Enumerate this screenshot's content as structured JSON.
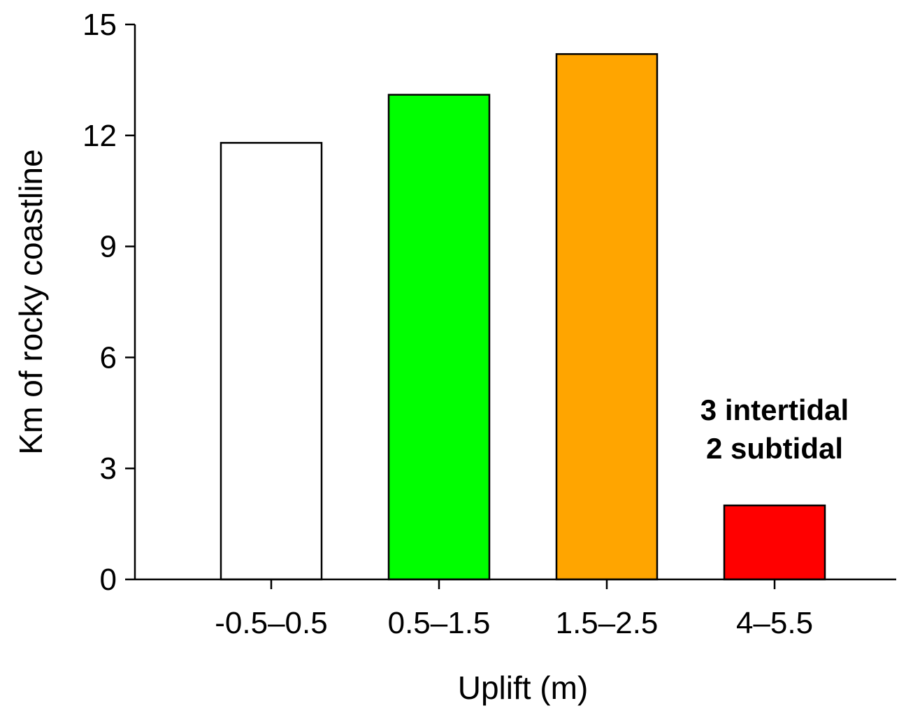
{
  "chart_data": {
    "type": "bar",
    "categories": [
      "-0.5–0.5",
      "0.5–1.5",
      "1.5–2.5",
      "4–5.5"
    ],
    "values": [
      11.8,
      13.1,
      14.2,
      2.0
    ],
    "colors": [
      "#ffffff",
      "#00ff00",
      "#ffa500",
      "#ff0000"
    ],
    "xlabel": "Uplift (m)",
    "ylabel": "Km of rocky coastline",
    "ylim": [
      0,
      15
    ],
    "yticks": [
      0,
      3,
      6,
      9,
      12,
      15
    ],
    "grid": false,
    "annotations": [
      {
        "category": "4–5.5",
        "lines": [
          "3 intertidal",
          "2 subtidal"
        ]
      }
    ]
  }
}
